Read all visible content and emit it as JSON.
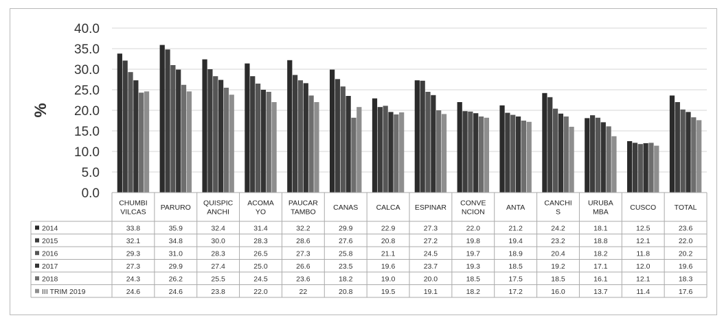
{
  "chart_data": {
    "type": "bar",
    "title": "",
    "xlabel": "",
    "ylabel": "%",
    "ylim": [
      0,
      40
    ],
    "yticks": [
      "0.0",
      "5.0",
      "10.0",
      "15.0",
      "20.0",
      "25.0",
      "30.0",
      "35.0",
      "40.0"
    ],
    "grid": true,
    "legend": "data-table",
    "categories": [
      [
        "CHUMBI",
        "VILCAS"
      ],
      [
        "PARURO"
      ],
      [
        "QUISPIC",
        "ANCHI"
      ],
      [
        "ACOMA",
        "YO"
      ],
      [
        "PAUCAR",
        "TAMBO"
      ],
      [
        "CANAS"
      ],
      [
        "CALCA"
      ],
      [
        "ESPINAR"
      ],
      [
        "CONVE",
        "NCION"
      ],
      [
        "ANTA"
      ],
      [
        "CANCHI",
        "S"
      ],
      [
        "URUBA",
        "MBA"
      ],
      [
        "CUSCO"
      ],
      [
        "TOTAL"
      ]
    ],
    "series": [
      {
        "name": "2014",
        "color": "#2b2b2b",
        "values": [
          33.8,
          35.9,
          32.4,
          31.4,
          32.2,
          29.9,
          22.9,
          27.3,
          22.0,
          21.2,
          24.2,
          18.1,
          12.5,
          23.6
        ],
        "labels": [
          "33.8",
          "35.9",
          "32.4",
          "31.4",
          "32.2",
          "29.9",
          "22.9",
          "27.3",
          "22.0",
          "21.2",
          "24.2",
          "18.1",
          "12.5",
          "23.6"
        ]
      },
      {
        "name": "2015",
        "color": "#3d3d3d",
        "values": [
          32.1,
          34.8,
          30.0,
          28.3,
          28.6,
          27.6,
          20.8,
          27.2,
          19.8,
          19.4,
          23.2,
          18.8,
          12.1,
          22.0
        ],
        "labels": [
          "32.1",
          "34.8",
          "30.0",
          "28.3",
          "28.6",
          "27.6",
          "20.8",
          "27.2",
          "19.8",
          "19.4",
          "23.2",
          "18.8",
          "12.1",
          "22.0"
        ]
      },
      {
        "name": "2016",
        "color": "#565656",
        "values": [
          29.3,
          31.0,
          28.3,
          26.5,
          27.3,
          25.8,
          21.1,
          24.5,
          19.7,
          18.9,
          20.4,
          18.2,
          11.8,
          20.2
        ],
        "labels": [
          "29.3",
          "31.0",
          "28.3",
          "26.5",
          "27.3",
          "25.8",
          "21.1",
          "24.5",
          "19.7",
          "18.9",
          "20.4",
          "18.2",
          "11.8",
          "20.2"
        ]
      },
      {
        "name": "2017",
        "color": "#333333",
        "values": [
          27.3,
          29.9,
          27.4,
          25.0,
          26.6,
          23.5,
          19.6,
          23.7,
          19.3,
          18.5,
          19.2,
          17.1,
          12.0,
          19.6
        ],
        "labels": [
          "27.3",
          "29.9",
          "27.4",
          "25.0",
          "26.6",
          "23.5",
          "19.6",
          "23.7",
          "19.3",
          "18.5",
          "19.2",
          "17.1",
          "12.0",
          "19.6"
        ]
      },
      {
        "name": "2018",
        "color": "#6e6e6e",
        "values": [
          24.3,
          26.2,
          25.5,
          24.5,
          23.6,
          18.2,
          19.0,
          20.0,
          18.5,
          17.5,
          18.5,
          16.1,
          12.1,
          18.3
        ],
        "labels": [
          "24.3",
          "26.2",
          "25.5",
          "24.5",
          "23.6",
          "18.2",
          "19.0",
          "20.0",
          "18.5",
          "17.5",
          "18.5",
          "16.1",
          "12.1",
          "18.3"
        ]
      },
      {
        "name": "III TRIM 2019",
        "color": "#8e8e8e",
        "values": [
          24.6,
          24.6,
          23.8,
          22.0,
          22,
          20.8,
          19.5,
          19.1,
          18.2,
          17.2,
          16.0,
          13.7,
          11.4,
          17.6
        ],
        "labels": [
          "24.6",
          "24.6",
          "23.8",
          "22.0",
          "22",
          "20.8",
          "19.5",
          "19.1",
          "18.2",
          "17.2",
          "16.0",
          "13.7",
          "11.4",
          "17.6"
        ]
      }
    ]
  }
}
